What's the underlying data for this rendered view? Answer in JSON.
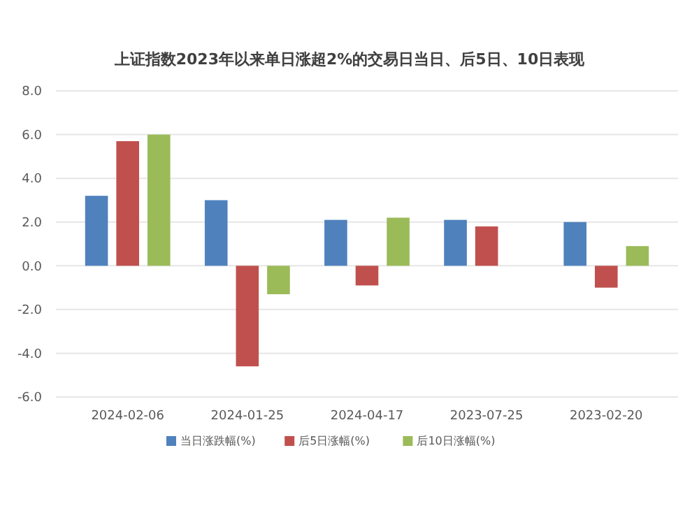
{
  "chart_data": {
    "type": "bar",
    "title": "上证指数2023年以来单日涨超2%的交易日当日、后5日、10日表现",
    "categories": [
      "2024-02-06",
      "2024-01-25",
      "2024-04-17",
      "2023-07-25",
      "2023-02-20"
    ],
    "series": [
      {
        "name": "当日涨跌幅(%)",
        "color": "#4f81bd",
        "values": [
          3.2,
          3.0,
          2.1,
          2.1,
          2.0
        ]
      },
      {
        "name": "后5日涨幅(%)",
        "color": "#c0504d",
        "values": [
          5.7,
          -4.6,
          -0.9,
          1.8,
          -1.0
        ]
      },
      {
        "name": "后10日涨幅(%)",
        "color": "#9bbb59",
        "values": [
          6.0,
          -1.3,
          2.2,
          null,
          0.9
        ]
      }
    ],
    "ylim": [
      -6,
      8
    ],
    "yticks": [
      {
        "value": -6,
        "label": "-6.0"
      },
      {
        "value": -4,
        "label": "-4.0"
      },
      {
        "value": -2,
        "label": "-2.0"
      },
      {
        "value": 0,
        "label": "0.0"
      },
      {
        "value": 2,
        "label": "2.0"
      },
      {
        "value": 4,
        "label": "4.0"
      },
      {
        "value": 6,
        "label": "6.0"
      },
      {
        "value": 8,
        "label": "8.0"
      }
    ],
    "grid": "y",
    "legend": "bottom"
  }
}
